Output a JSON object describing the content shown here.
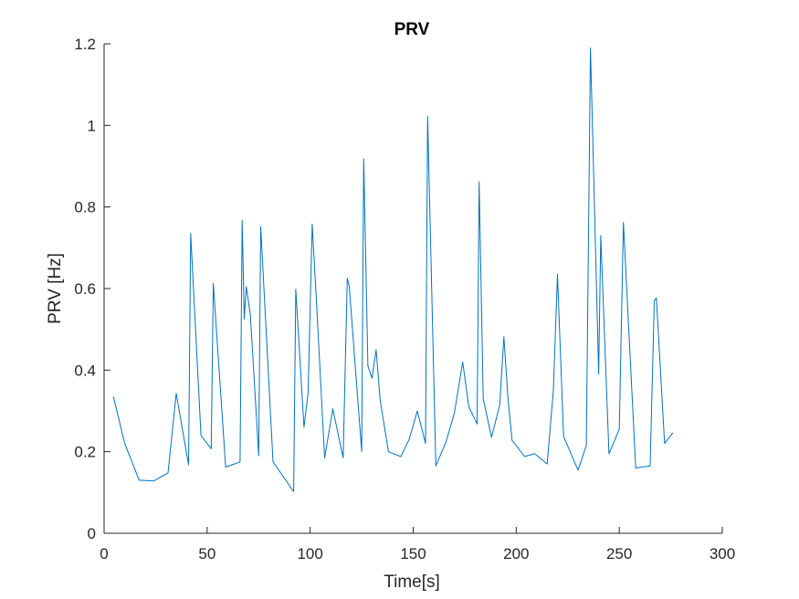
{
  "chart_data": {
    "type": "line",
    "title": "PRV",
    "xlabel": "Time[s]",
    "ylabel": "PRV [Hz]",
    "xlim": [
      0,
      300
    ],
    "ylim": [
      0,
      1.2
    ],
    "xticks": [
      0,
      50,
      100,
      150,
      200,
      250,
      300
    ],
    "yticks": [
      0,
      0.2,
      0.4,
      0.6,
      0.8,
      1,
      1.2
    ],
    "xtick_labels": [
      "0",
      "50",
      "100",
      "150",
      "200",
      "250",
      "300"
    ],
    "ytick_labels": [
      "0",
      "0.2",
      "0.4",
      "0.6",
      "0.8",
      "1",
      "1.2"
    ],
    "grid": false,
    "line_color": "#0072BD",
    "series": [
      {
        "x": [
          4.5,
          10,
          17,
          24,
          31,
          35,
          41,
          42,
          47,
          52,
          53,
          59,
          66,
          67,
          68,
          69,
          71,
          75,
          76,
          82,
          92,
          93,
          97,
          99,
          101,
          103,
          107,
          111,
          116,
          118,
          119,
          125,
          126,
          128,
          130,
          132,
          134,
          138,
          144,
          148,
          152,
          156,
          157,
          161,
          166,
          170,
          174,
          177,
          181,
          182,
          184,
          188,
          192,
          194,
          196,
          198,
          204,
          209,
          215,
          218,
          220,
          223,
          230,
          234,
          236,
          237,
          240,
          241,
          245,
          250,
          252,
          258,
          265,
          267,
          268,
          272,
          276
        ],
        "y": [
          0.335,
          0.22,
          0.13,
          0.128,
          0.148,
          0.343,
          0.168,
          0.735,
          0.24,
          0.207,
          0.613,
          0.162,
          0.175,
          0.768,
          0.525,
          0.605,
          0.535,
          0.19,
          0.752,
          0.175,
          0.102,
          0.598,
          0.26,
          0.345,
          0.758,
          0.575,
          0.185,
          0.305,
          0.185,
          0.625,
          0.605,
          0.2,
          0.918,
          0.41,
          0.38,
          0.45,
          0.325,
          0.2,
          0.188,
          0.23,
          0.3,
          0.22,
          1.022,
          0.165,
          0.225,
          0.295,
          0.42,
          0.31,
          0.268,
          0.862,
          0.33,
          0.235,
          0.315,
          0.482,
          0.33,
          0.228,
          0.188,
          0.195,
          0.17,
          0.35,
          0.635,
          0.237,
          0.155,
          0.215,
          1.19,
          1.0,
          0.39,
          0.73,
          0.195,
          0.255,
          0.762,
          0.16,
          0.165,
          0.57,
          0.577,
          0.22,
          0.246
        ]
      }
    ]
  }
}
